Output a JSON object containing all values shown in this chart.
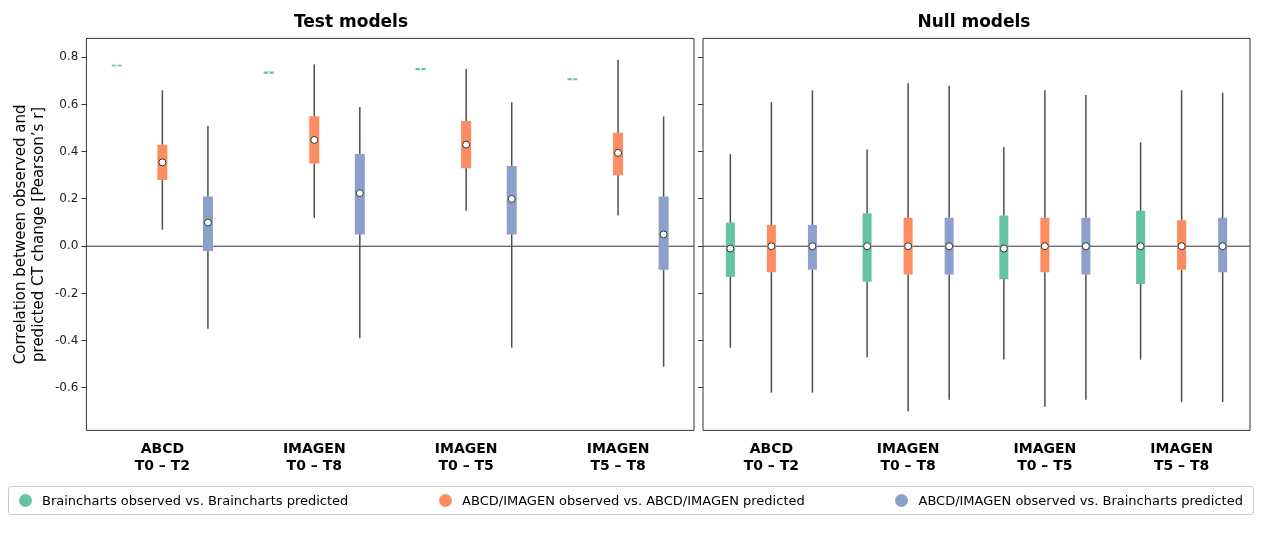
{
  "chart_data": [
    {
      "type": "box",
      "title": "Test models",
      "ylabel": "Correlation between observed and predicted CT change [Pearson’s r]",
      "categories": [
        "ABCD\nT0 – T2",
        "IMAGEN\nT0 – T8",
        "IMAGEN\nT0 – T5",
        "IMAGEN\nT5 – T8"
      ],
      "ylim": [
        -0.78,
        0.88
      ],
      "yticks": [
        -0.6,
        -0.4,
        -0.2,
        {
          "value": 0,
          "label": "0.0"
        },
        0.2,
        0.4,
        0.6,
        0.8
      ],
      "legend": "bottom",
      "ref_lines": [
        {
          "axis": "y",
          "value": 0
        }
      ],
      "series": [
        {
          "name": "Braincharts observed vs. Braincharts predicted",
          "color": "#66c2a5",
          "boxes": [
            {
              "low": 0.758,
              "q1": 0.762,
              "median": 0.765,
              "q3": 0.768,
              "high": 0.772
            },
            {
              "low": 0.725,
              "q1": 0.73,
              "median": 0.735,
              "q3": 0.74,
              "high": 0.745
            },
            {
              "low": 0.74,
              "q1": 0.745,
              "median": 0.75,
              "q3": 0.755,
              "high": 0.76
            },
            {
              "low": 0.7,
              "q1": 0.703,
              "median": 0.707,
              "q3": 0.711,
              "high": 0.715
            }
          ]
        },
        {
          "name": "ABCD/IMAGEN observed vs. ABCD/IMAGEN predicted",
          "color": "#fc8d62",
          "boxes": [
            {
              "low": 0.07,
              "q1": 0.28,
              "median": 0.355,
              "q3": 0.43,
              "high": 0.66
            },
            {
              "low": 0.12,
              "q1": 0.35,
              "median": 0.45,
              "q3": 0.55,
              "high": 0.77
            },
            {
              "low": 0.15,
              "q1": 0.33,
              "median": 0.43,
              "q3": 0.53,
              "high": 0.75
            },
            {
              "low": 0.13,
              "q1": 0.3,
              "median": 0.395,
              "q3": 0.48,
              "high": 0.79
            }
          ]
        },
        {
          "name": "ABCD/IMAGEN observed vs. Braincharts predicted",
          "color": "#8da0cb",
          "boxes": [
            {
              "low": -0.35,
              "q1": -0.02,
              "median": 0.1,
              "q3": 0.21,
              "high": 0.51
            },
            {
              "low": -0.39,
              "q1": 0.05,
              "median": 0.225,
              "q3": 0.39,
              "high": 0.59
            },
            {
              "low": -0.43,
              "q1": 0.05,
              "median": 0.2,
              "q3": 0.34,
              "high": 0.61
            },
            {
              "low": -0.51,
              "q1": -0.1,
              "median": 0.05,
              "q3": 0.21,
              "high": 0.55
            }
          ]
        }
      ]
    },
    {
      "type": "box",
      "title": "Null models",
      "categories": [
        "ABCD\nT0 – T2",
        "IMAGEN\nT0 – T8",
        "IMAGEN\nT0 – T5",
        "IMAGEN\nT5 – T8"
      ],
      "ylim": [
        -0.78,
        0.88
      ],
      "yticks": [
        -0.6,
        -0.4,
        -0.2,
        0,
        0.2,
        0.4,
        0.6,
        0.8
      ],
      "tick_labels": "x",
      "ref_lines": [
        {
          "axis": "y",
          "value": 0
        }
      ],
      "series": [
        {
          "color": "#66c2a5",
          "boxes": [
            {
              "low": -0.43,
              "q1": -0.13,
              "median": -0.01,
              "q3": 0.1,
              "high": 0.39
            },
            {
              "low": -0.47,
              "q1": -0.15,
              "median": 0.0,
              "q3": 0.14,
              "high": 0.41
            },
            {
              "low": -0.48,
              "q1": -0.14,
              "median": -0.01,
              "q3": 0.13,
              "high": 0.42
            },
            {
              "low": -0.48,
              "q1": -0.16,
              "median": 0.0,
              "q3": 0.15,
              "high": 0.44
            }
          ]
        },
        {
          "color": "#fc8d62",
          "boxes": [
            {
              "low": -0.62,
              "q1": -0.11,
              "median": 0.0,
              "q3": 0.09,
              "high": 0.61
            },
            {
              "low": -0.7,
              "q1": -0.12,
              "median": 0.0,
              "q3": 0.12,
              "high": 0.69
            },
            {
              "low": -0.68,
              "q1": -0.11,
              "median": 0.0,
              "q3": 0.12,
              "high": 0.66
            },
            {
              "low": -0.66,
              "q1": -0.1,
              "median": 0.0,
              "q3": 0.11,
              "high": 0.66
            }
          ]
        },
        {
          "color": "#8da0cb",
          "boxes": [
            {
              "low": -0.62,
              "q1": -0.1,
              "median": 0.0,
              "q3": 0.09,
              "high": 0.66
            },
            {
              "low": -0.65,
              "q1": -0.12,
              "median": 0.0,
              "q3": 0.12,
              "high": 0.68
            },
            {
              "low": -0.65,
              "q1": -0.12,
              "median": 0.0,
              "q3": 0.12,
              "high": 0.64
            },
            {
              "low": -0.66,
              "q1": -0.11,
              "median": 0.0,
              "q3": 0.12,
              "high": 0.65
            }
          ]
        }
      ]
    }
  ]
}
